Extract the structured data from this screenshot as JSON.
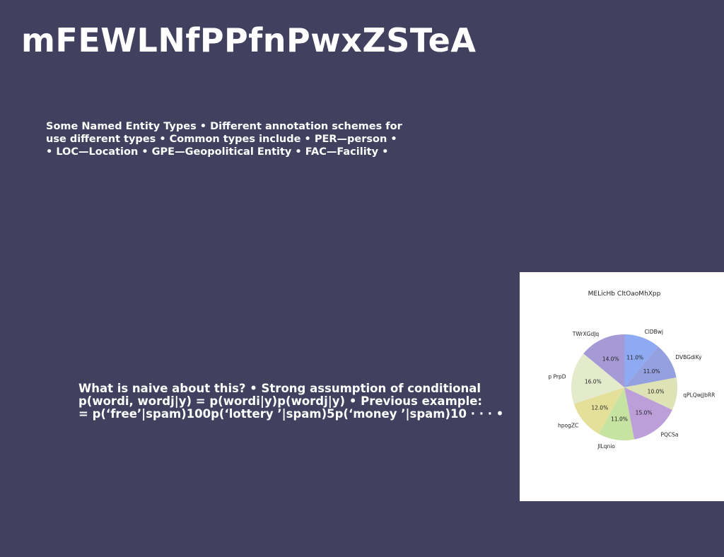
{
  "slide": {
    "title": "mFEWLNfPPfnPwxZSTeA",
    "block1_lines": [
      "Some Named Entity Types • Different annotation schemes for",
      "use different types • Common types include • PER—person •",
      "• LOC—Location • GPE—Geopolitical Entity • FAC—Facility •"
    ],
    "block2_lines": [
      "What is naive about this? • Strong assumption of conditional",
      "p(wordi, wordj|y) = p(wordi|y)p(wordj|y) • Previous example:",
      "= p(‘free’|spam)100p(‘lottery ’|spam)5p(‘money ’|spam)10 · · · •"
    ]
  },
  "chart_data": {
    "type": "pie",
    "title": "MELicHb CltOaoMhXpp",
    "categories": [
      "ClDBwj",
      "DVBGdiKy",
      "qPLQwjJbRR",
      "PQCSa",
      "JlLqnio",
      "hpogZC",
      "p PrpD",
      "TWrXGdJq"
    ],
    "values": [
      11.0,
      11.0,
      10.0,
      15.0,
      11.0,
      12.0,
      16.0,
      14.0
    ],
    "labels": [
      "11.0%",
      "11.0%",
      "10.0%",
      "15.0%",
      "11.0%",
      "12.0%",
      "16.0%",
      "14.0%"
    ],
    "colors": [
      "#8eaaf2",
      "#95a0e0",
      "#dde3b4",
      "#bc9fd9",
      "#c6e3a1",
      "#e4e09a",
      "#e4ebcc",
      "#a69ad6"
    ],
    "start_angle_deg": 90,
    "direction": "clockwise"
  }
}
